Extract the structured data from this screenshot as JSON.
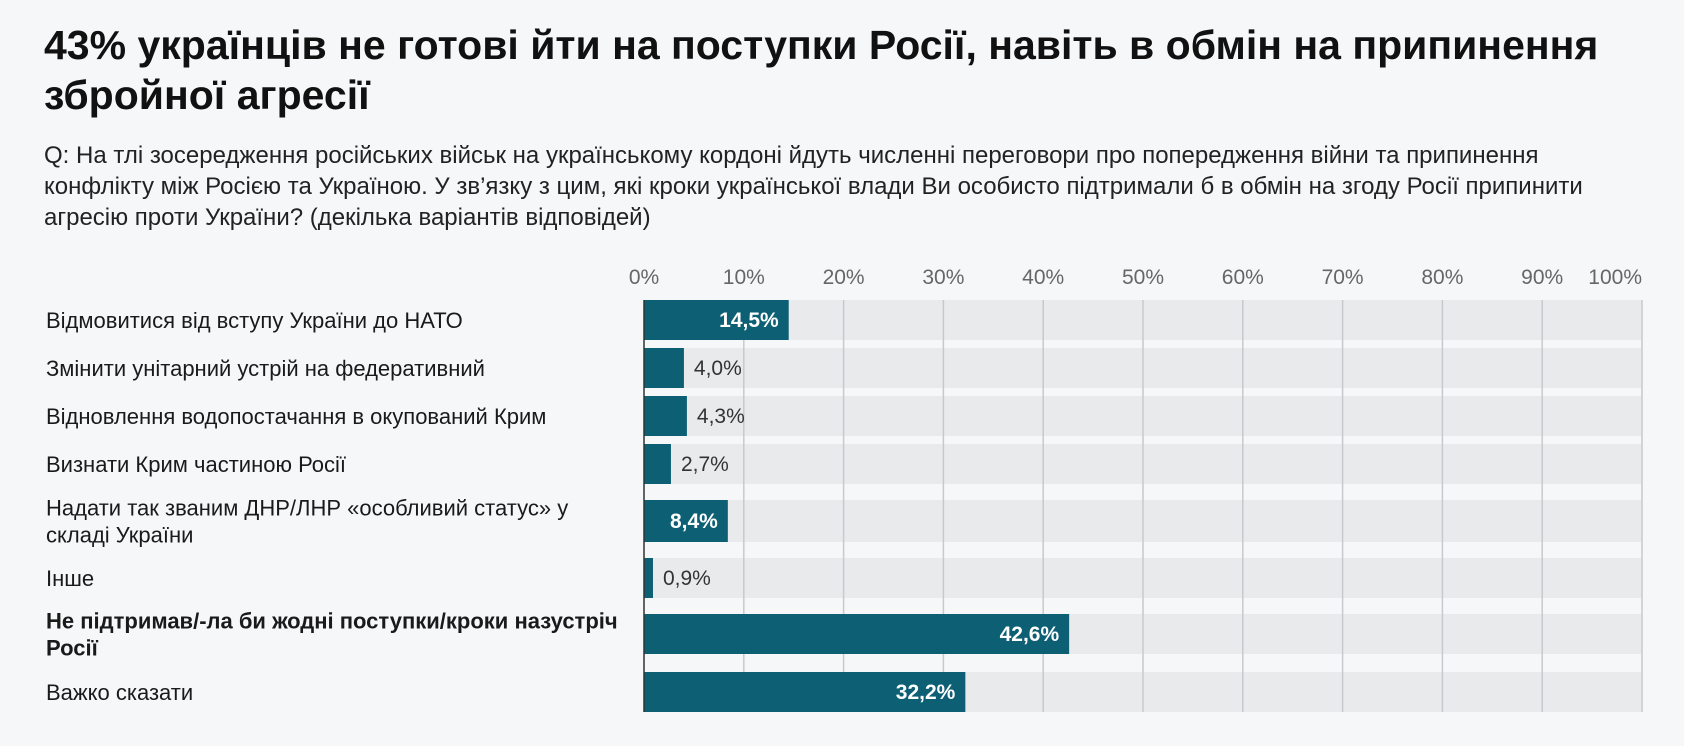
{
  "title": "43% українців не готові йти на поступки Росії, навіть в обмін на припинення збройної агресії",
  "subtitle": "Q: На тлі зосередження російських військ на українському кордоні йдуть численні переговори про попередження війни та припинення конфлікту між Росією та Україною. У зв’язку з цим, які кроки української влади Ви особисто підтримали б в обмін на згоду Росії припинити агресію проти України? (декілька варіантів відповідей)",
  "colors": {
    "bar": "#0d5f74",
    "track": "#e9eaec",
    "grid": "#c8c9cc",
    "value_inside": "#ffffff",
    "value_outside": "#333333"
  },
  "chart_data": {
    "type": "bar",
    "orientation": "horizontal",
    "categories": [
      "Відмовитися від вступу України до НАТО",
      "Змінити унітарний устрій на федеративний",
      "Відновлення водопостачання в окупований Крим",
      "Визнати Крим частиною Росії",
      "Надати так званим ДНР/ЛНР «особливий статус» у складі України",
      "Інше",
      "Не підтримав/-ла би жодні поступки/кроки назустріч Росії",
      "Важко сказати"
    ],
    "values": [
      14.5,
      4.0,
      4.3,
      2.7,
      8.4,
      0.9,
      42.6,
      32.2
    ],
    "value_labels": [
      "14,5%",
      "4,0%",
      "4,3%",
      "2,7%",
      "8,4%",
      "0,9%",
      "42,6%",
      "32,2%"
    ],
    "bold_categories": [
      6
    ],
    "xlim": [
      0,
      100
    ],
    "ticks": [
      0,
      10,
      20,
      30,
      40,
      50,
      60,
      70,
      80,
      90,
      100
    ],
    "tick_labels": [
      "0%",
      "10%",
      "20%",
      "30%",
      "40%",
      "50%",
      "60%",
      "70%",
      "80%",
      "90%",
      "100%"
    ],
    "grid": true
  }
}
